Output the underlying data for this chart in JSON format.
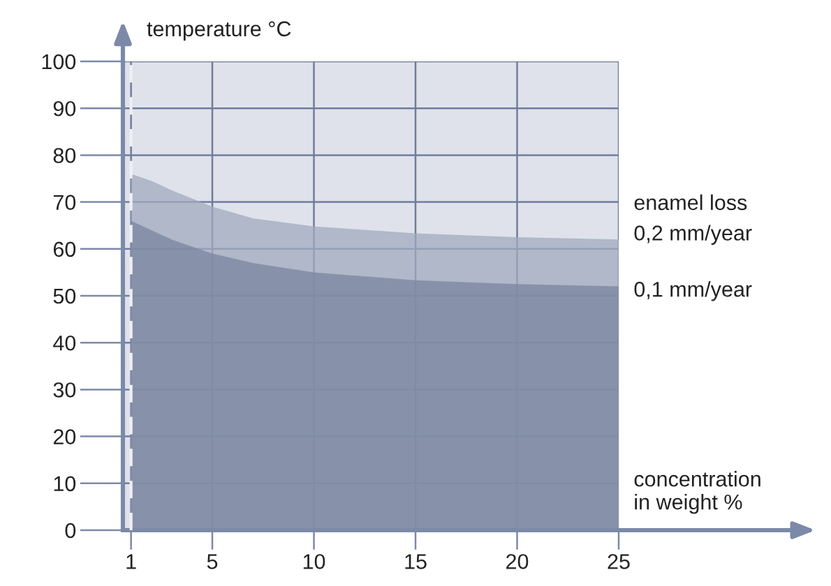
{
  "chart_data": {
    "type": "area",
    "ylabel": "temperature °C",
    "xlabel": "concentration\nin weight %",
    "legend_title": "enamel loss",
    "x": [
      1,
      2,
      3,
      5,
      7,
      10,
      15,
      20,
      25
    ],
    "series": [
      {
        "name": "0,2 mm/year",
        "color": "#a0a9be",
        "values": [
          76,
          74.5,
          72.5,
          69,
          66.5,
          64.8,
          63.3,
          62.5,
          62
        ]
      },
      {
        "name": "0,1 mm/year",
        "color": "#7a869f",
        "values": [
          66,
          64,
          62,
          59,
          57,
          55,
          53.3,
          52.5,
          52
        ]
      }
    ],
    "xlim": [
      0.6,
      25
    ],
    "ylim": [
      0,
      100
    ],
    "xticks": [
      1,
      5,
      10,
      15,
      20,
      25
    ],
    "yticks": [
      0,
      10,
      20,
      30,
      40,
      50,
      60,
      70,
      80,
      90,
      100
    ],
    "ref_lines": [
      {
        "axis": "x",
        "value": 1,
        "label": null,
        "color": "#eef0f5",
        "line_style": "dashed"
      }
    ],
    "grid": true,
    "legend": false
  }
}
